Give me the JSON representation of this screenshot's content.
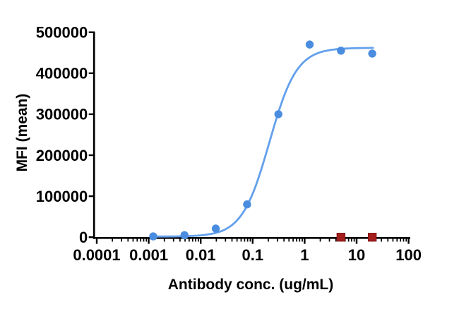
{
  "colors": {
    "background": "#ffffff",
    "axis": "#000000",
    "text": "#000000",
    "curve_blue": "#63a0ec",
    "marker_blue": "#4a8de0",
    "marker_red": "#a51e1e",
    "marker_red_border": "#821414"
  },
  "chart_data": {
    "type": "scatter",
    "title": "",
    "xlabel": "Antibody conc. (ug/mL)",
    "ylabel": "MFI (mean)",
    "x_scale": "log10",
    "xlim": [
      0.0001,
      100
    ],
    "ylim": [
      0,
      500000
    ],
    "grid": false,
    "legend": false,
    "x_ticks": [
      0.0001,
      0.001,
      0.01,
      0.1,
      1,
      10,
      100
    ],
    "x_tick_labels": [
      "0.0001",
      "0.001",
      "0.01",
      "0.1",
      "1",
      "10",
      "100"
    ],
    "y_ticks": [
      0,
      100000,
      200000,
      300000,
      400000,
      500000
    ],
    "y_tick_labels": [
      "0",
      "100000",
      "200000",
      "300000",
      "400000",
      "500000"
    ],
    "series": [
      {
        "name": "blue_circles",
        "marker": "circle",
        "color_ref": "marker_blue",
        "line_color_ref": "curve_blue",
        "x": [
          0.00122,
          0.00488,
          0.0195,
          0.0781,
          0.3125,
          1.25,
          5,
          20
        ],
        "y": [
          2000,
          5000,
          21000,
          80000,
          300000,
          470000,
          455000,
          448000
        ],
        "fit_curve": {
          "model": "four_parameter_logistic",
          "bottom": 1500,
          "top": 462000,
          "ec50": 0.21,
          "hill": 1.65,
          "x_start": 0.00122,
          "x_end": 20.6
        }
      },
      {
        "name": "red_squares",
        "marker": "square",
        "color_ref": "marker_red",
        "border_color_ref": "marker_red_border",
        "x": [
          5,
          20
        ],
        "y": [
          0,
          0
        ]
      }
    ]
  }
}
